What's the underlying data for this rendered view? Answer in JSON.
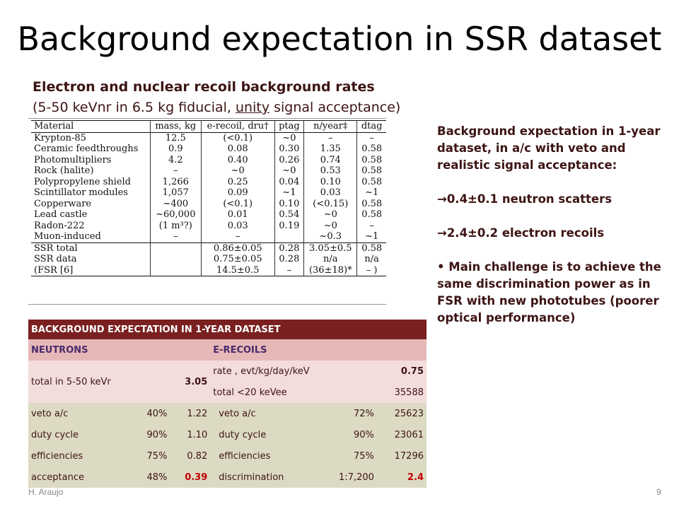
{
  "slide": {
    "title": "Background expectation in SSR dataset",
    "subtitle1": "Electron and nuclear recoil background rates",
    "subtitle2_pre": "(5-50 keVnr in 6.5 kg fiducial, ",
    "subtitle2_underlined": "unity",
    "subtitle2_post": " signal acceptance)",
    "footer_left": "H. Araujo",
    "page_number": "9"
  },
  "latex_table": {
    "headers": [
      "Material",
      "mass, kg",
      "e-recoil, dru†",
      "ptag",
      "n/year‡",
      "dtag"
    ],
    "rows": [
      [
        "Krypton-85",
        "12.5",
        "(<0.1)",
        "~0",
        "–",
        "–"
      ],
      [
        "Ceramic feedthroughs",
        "0.9",
        "0.08",
        "0.30",
        "1.35",
        "0.58"
      ],
      [
        "Photomultipliers",
        "4.2",
        "0.40",
        "0.26",
        "0.74",
        "0.58"
      ],
      [
        "Rock (halite)",
        "–",
        "~0",
        "~0",
        "0.53",
        "0.58"
      ],
      [
        "Polypropylene shield",
        "1,266",
        "0.25",
        "0.04",
        "0.10",
        "0.58"
      ],
      [
        "Scintillator modules",
        "1,057",
        "0.09",
        "~1",
        "0.03",
        "~1"
      ],
      [
        "Copperware",
        "~400",
        "(<0.1)",
        "0.10",
        "(<0.15)",
        "0.58"
      ],
      [
        "Lead castle",
        "~60,000",
        "0.01",
        "0.54",
        "~0",
        "0.58"
      ],
      [
        "Radon-222",
        "(1 m³?)",
        "0.03",
        "0.19",
        "~0",
        "–"
      ],
      [
        "Muon-induced",
        "–",
        "–",
        "",
        "~0.3",
        "~1"
      ]
    ],
    "summary_rows": [
      [
        "SSR total",
        "",
        "0.86±0.05",
        "0.28",
        "3.05±0.5",
        "0.58"
      ],
      [
        "SSR data",
        "",
        "0.75±0.05",
        "0.28",
        "n/a",
        "n/a"
      ],
      [
        "(FSR [6]",
        "",
        "14.5±0.5",
        "–",
        "(36±18)*",
        "– )"
      ]
    ]
  },
  "right_text": {
    "intro": "Background expectation in 1-year dataset, in a/c with veto and realistic signal acceptance:",
    "neutron_bullet": "0.4±0.1 neutron scatters",
    "electron_bullet": "2.4±0.2 electron recoils",
    "challenge": "Main challenge is to achieve the same discrimination power as in FSR with new phototubes (poorer optical performance)",
    "arrow_glyph": "→",
    "bullet_glyph": "•"
  },
  "bg_table": {
    "title": "BACKGROUND EXPECTATION IN 1-YEAR DATASET",
    "neutrons_header": "NEUTRONS",
    "erecoils_header": "E-RECOILS",
    "total_label": "total in 5-50 keVr",
    "total_value": "3.05",
    "rate_label": "rate , evt/kg/day/keV",
    "rate_value": "0.75",
    "total_e_label": "total <20 keVee",
    "total_e_value": "35588",
    "rows": [
      {
        "n_label": "veto a/c",
        "n_pct": "40%",
        "n_val": "1.22",
        "e_label": "veto a/c",
        "e_pct": "72%",
        "e_val": "25623"
      },
      {
        "n_label": "duty cycle",
        "n_pct": "90%",
        "n_val": "1.10",
        "e_label": "duty cycle",
        "e_pct": "90%",
        "e_val": "23061"
      },
      {
        "n_label": "efficiencies",
        "n_pct": "75%",
        "n_val": "0.82",
        "e_label": "efficiencies",
        "e_pct": "75%",
        "e_val": "17296"
      },
      {
        "n_label": "acceptance",
        "n_pct": "48%",
        "n_val": "0.39",
        "e_label": "discrimination",
        "e_pct": "1:7,200",
        "e_val": "2.4"
      }
    ]
  },
  "colors": {
    "title_bar": "#7a2020",
    "header_row": "#e6b9b8",
    "pink_rows": "#f3dcdc",
    "tan_rows": "#dddac4",
    "highlight": "#c00000",
    "text_dark": "#3d1414"
  }
}
